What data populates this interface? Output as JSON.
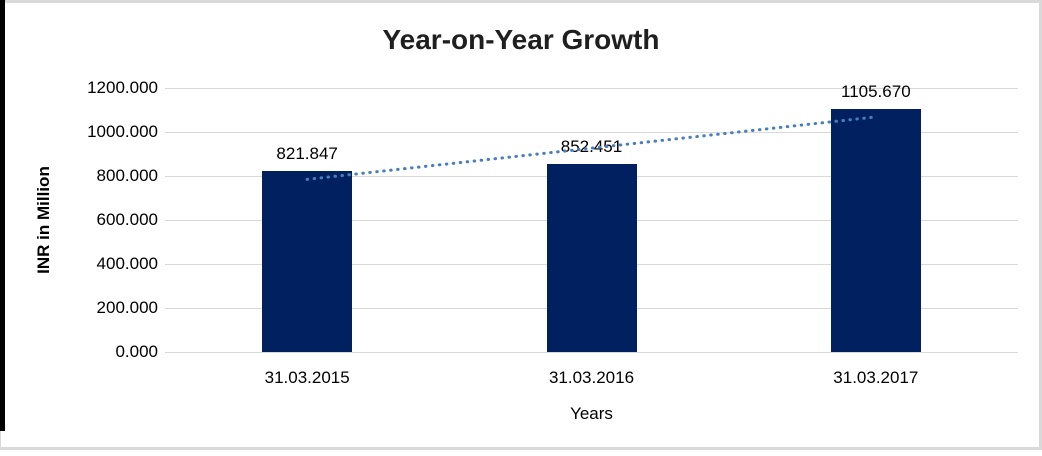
{
  "frame": {
    "border_color": "#d9d9d9",
    "left_edge_bar_color": "#000000"
  },
  "chart_data": {
    "type": "bar",
    "title": "Year-on-Year Growth",
    "categories": [
      "31.03.2015",
      "31.03.2016",
      "31.03.2017"
    ],
    "values": [
      821.847,
      852.451,
      1105.67
    ],
    "data_labels": [
      "821.847",
      "852.451",
      "1105.670"
    ],
    "xlabel": "Years",
    "ylabel": "INR in Million",
    "ylim": [
      0,
      1200
    ],
    "ytick_step": 200,
    "ytick_labels": [
      "0.000",
      "200.000",
      "400.000",
      "600.000",
      "800.000",
      "1000.000",
      "1200.000"
    ],
    "grid": true,
    "grid_color": "#d9d9d9",
    "legend": "none",
    "bar_color": "#002060",
    "trendline": {
      "type": "linear",
      "style": "dotted",
      "color": "#4a7ebb"
    }
  }
}
